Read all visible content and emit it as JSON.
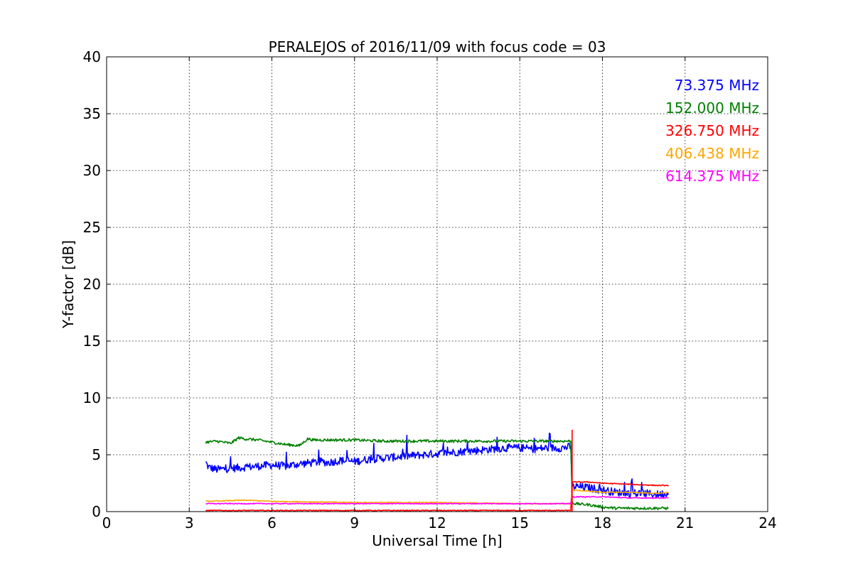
{
  "chart_data": {
    "type": "line",
    "title": "PERALEJOS of 2016/11/09 with focus code = 03",
    "xlabel": "Universal Time [h]",
    "ylabel": "Y-factor [dB]",
    "xlim": [
      0,
      24
    ],
    "ylim": [
      0,
      40
    ],
    "xticks": [
      0,
      3,
      6,
      9,
      12,
      15,
      18,
      21,
      24
    ],
    "yticks": [
      0,
      5,
      10,
      15,
      20,
      25,
      30,
      35,
      40
    ],
    "grid": true,
    "legend_position": "top-right",
    "series": [
      {
        "name": "73.375 MHz",
        "color": "#0000ff",
        "x": [
          3.6,
          3.7,
          4.0,
          4.5,
          5.0,
          5.5,
          6.0,
          6.5,
          7.0,
          7.5,
          7.8,
          8.0,
          8.5,
          9.0,
          9.5,
          10.0,
          10.5,
          11.0,
          11.5,
          12.0,
          12.5,
          13.0,
          13.5,
          14.0,
          14.5,
          15.0,
          15.5,
          16.0,
          16.5,
          16.85,
          16.9,
          17.0,
          17.5,
          18.0,
          18.5,
          19.0,
          19.5,
          20.0,
          20.4
        ],
        "y": [
          4.3,
          3.9,
          3.7,
          3.8,
          3.9,
          4.0,
          4.1,
          4.0,
          4.2,
          4.3,
          4.4,
          4.3,
          4.5,
          4.4,
          4.6,
          4.7,
          4.8,
          4.9,
          5.0,
          5.1,
          5.2,
          5.3,
          5.4,
          5.5,
          5.6,
          5.6,
          5.5,
          5.6,
          5.6,
          5.7,
          2.2,
          2.2,
          2.1,
          1.9,
          1.7,
          1.6,
          1.6,
          1.5,
          1.6
        ]
      },
      {
        "name": "152.000 MHz",
        "color": "#008000",
        "x": [
          3.6,
          4.0,
          4.5,
          4.8,
          5.0,
          5.5,
          6.0,
          6.5,
          7.0,
          7.3,
          7.5,
          8.0,
          9.0,
          10.0,
          11.0,
          12.0,
          13.0,
          14.0,
          15.0,
          16.0,
          16.85,
          16.9,
          17.0,
          17.5,
          18.0,
          18.5,
          19.0,
          19.5,
          20.0,
          20.4
        ],
        "y": [
          6.1,
          6.2,
          6.0,
          6.5,
          6.4,
          6.3,
          6.1,
          5.9,
          5.8,
          6.4,
          6.3,
          6.3,
          6.3,
          6.2,
          6.2,
          6.2,
          6.2,
          6.2,
          6.2,
          6.2,
          6.2,
          0.8,
          0.7,
          0.6,
          0.4,
          0.3,
          0.3,
          0.3,
          0.3,
          0.3
        ]
      },
      {
        "name": "326.750 MHz",
        "color": "#ff0000",
        "x": [
          3.6,
          6.0,
          9.0,
          12.0,
          15.0,
          16.85,
          16.9,
          17.5,
          18.0,
          19.0,
          20.0,
          20.4
        ],
        "y": [
          0.1,
          0.1,
          0.1,
          0.1,
          0.1,
          0.1,
          2.6,
          2.6,
          2.5,
          2.4,
          2.3,
          2.3
        ]
      },
      {
        "name": "406.438 MHz",
        "color": "#ffa500",
        "x": [
          3.6,
          5.0,
          6.0,
          9.0,
          12.0,
          15.0,
          16.85,
          16.9,
          17.5,
          18.0,
          19.0,
          20.0,
          20.4
        ],
        "y": [
          0.9,
          1.0,
          0.9,
          0.8,
          0.8,
          0.7,
          0.7,
          1.9,
          1.8,
          1.7,
          1.7,
          1.6,
          1.7
        ]
      },
      {
        "name": "614.375 MHz",
        "color": "#ff00ff",
        "x": [
          3.6,
          6.0,
          9.0,
          12.0,
          15.0,
          16.85,
          16.9,
          17.5,
          18.0,
          19.0,
          20.0,
          20.4
        ],
        "y": [
          0.7,
          0.7,
          0.7,
          0.7,
          0.7,
          0.7,
          1.3,
          1.3,
          1.3,
          1.2,
          1.2,
          1.2
        ]
      }
    ],
    "spike": {
      "x": 16.9,
      "y": 7.2,
      "color": "#ff0000"
    }
  }
}
